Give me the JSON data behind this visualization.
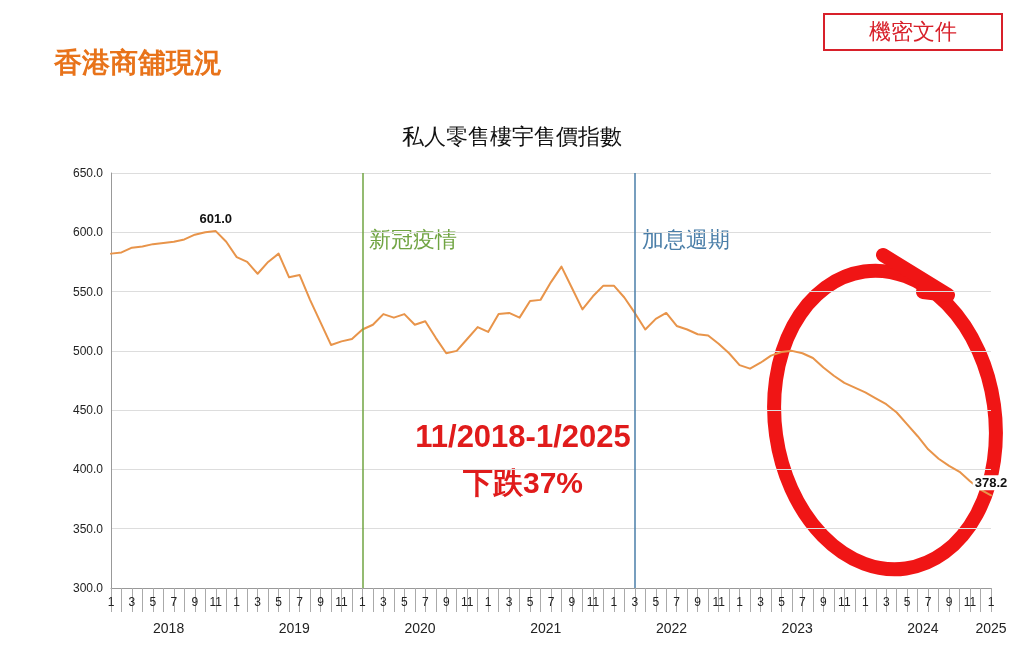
{
  "chart_data": {
    "type": "line",
    "title": "香港商舖現況",
    "subtitle": "私人零售樓宇售價指數",
    "x": [
      "2018-01",
      "2018-02",
      "2018-03",
      "2018-04",
      "2018-05",
      "2018-06",
      "2018-07",
      "2018-08",
      "2018-09",
      "2018-10",
      "2018-11",
      "2018-12",
      "2019-01",
      "2019-02",
      "2019-03",
      "2019-04",
      "2019-05",
      "2019-06",
      "2019-07",
      "2019-08",
      "2019-09",
      "2019-10",
      "2019-11",
      "2019-12",
      "2020-01",
      "2020-02",
      "2020-03",
      "2020-04",
      "2020-05",
      "2020-06",
      "2020-07",
      "2020-08",
      "2020-09",
      "2020-10",
      "2020-11",
      "2020-12",
      "2021-01",
      "2021-02",
      "2021-03",
      "2021-04",
      "2021-05",
      "2021-06",
      "2021-07",
      "2021-08",
      "2021-09",
      "2021-10",
      "2021-11",
      "2021-12",
      "2022-01",
      "2022-02",
      "2022-03",
      "2022-04",
      "2022-05",
      "2022-06",
      "2022-07",
      "2022-08",
      "2022-09",
      "2022-10",
      "2022-11",
      "2022-12",
      "2023-01",
      "2023-02",
      "2023-03",
      "2023-04",
      "2023-05",
      "2023-06",
      "2023-07",
      "2023-08",
      "2023-09",
      "2023-10",
      "2023-11",
      "2023-12",
      "2024-01",
      "2024-02",
      "2024-03",
      "2024-04",
      "2024-05",
      "2024-06",
      "2024-07",
      "2024-08",
      "2024-09",
      "2024-10",
      "2024-11",
      "2024-12",
      "2025-01"
    ],
    "values": [
      582,
      583,
      587,
      588,
      590,
      591,
      592,
      594,
      598,
      600,
      601.0,
      592,
      579,
      575,
      565,
      575,
      582,
      562,
      564,
      543,
      524,
      505,
      508,
      510,
      518,
      522,
      531,
      528,
      531,
      522,
      525,
      511,
      498,
      500,
      510,
      520,
      516,
      531,
      532,
      528,
      542,
      543,
      558,
      571,
      553,
      535,
      546,
      555,
      555,
      545,
      532,
      518,
      527,
      532,
      521,
      518,
      514,
      513,
      506,
      498,
      488,
      485,
      490,
      496,
      499,
      500,
      498,
      494,
      486,
      479,
      473,
      469,
      465,
      460,
      455,
      448,
      438,
      428,
      417,
      409,
      403,
      398,
      390,
      383,
      378.2
    ],
    "xlim": [
      "2018-01",
      "2025-01"
    ],
    "value_labels": [
      null,
      null,
      null,
      null,
      null,
      null,
      null,
      null,
      null,
      null,
      "601.0",
      null,
      null,
      null,
      null,
      null,
      null,
      null,
      null,
      null,
      null,
      null,
      null,
      null,
      null,
      null,
      null,
      null,
      null,
      null,
      null,
      null,
      null,
      null,
      null,
      null,
      null,
      null,
      null,
      null,
      null,
      null,
      null,
      null,
      null,
      null,
      null,
      null,
      null,
      null,
      null,
      null,
      null,
      null,
      null,
      null,
      null,
      null,
      null,
      null,
      null,
      null,
      null,
      null,
      null,
      null,
      null,
      null,
      null,
      null,
      null,
      null,
      null,
      null,
      null,
      null,
      null,
      null,
      null,
      null,
      null,
      null,
      null,
      null,
      "378.2"
    ],
    "color": "#e8944a",
    "ylim": [
      300,
      650
    ],
    "yticks": [
      {
        "value": 300,
        "label": "300.0"
      },
      {
        "value": 350,
        "label": "350.0"
      },
      {
        "value": 400,
        "label": "400.0"
      },
      {
        "value": 450,
        "label": "450.0"
      },
      {
        "value": 500,
        "label": "500.0"
      },
      {
        "value": 550,
        "label": "550.0"
      },
      {
        "value": 600,
        "label": "600.0"
      },
      {
        "value": 650,
        "label": "650.0"
      }
    ],
    "xticks": [
      {
        "value": "2018-01",
        "label": "1"
      },
      {
        "value": "2018-03",
        "label": "3"
      },
      {
        "value": "2018-05",
        "label": "5"
      },
      {
        "value": "2018-07",
        "label": "7"
      },
      {
        "value": "2018-09",
        "label": "9"
      },
      {
        "value": "2018-11",
        "label": "11"
      },
      {
        "value": "2019-01",
        "label": "1"
      },
      {
        "value": "2019-03",
        "label": "3"
      },
      {
        "value": "2019-05",
        "label": "5"
      },
      {
        "value": "2019-07",
        "label": "7"
      },
      {
        "value": "2019-09",
        "label": "9"
      },
      {
        "value": "2019-11",
        "label": "11"
      },
      {
        "value": "2020-01",
        "label": "1"
      },
      {
        "value": "2020-03",
        "label": "3"
      },
      {
        "value": "2020-05",
        "label": "5"
      },
      {
        "value": "2020-07",
        "label": "7"
      },
      {
        "value": "2020-09",
        "label": "9"
      },
      {
        "value": "2020-11",
        "label": "11"
      },
      {
        "value": "2021-01",
        "label": "1"
      },
      {
        "value": "2021-03",
        "label": "3"
      },
      {
        "value": "2021-05",
        "label": "5"
      },
      {
        "value": "2021-07",
        "label": "7"
      },
      {
        "value": "2021-09",
        "label": "9"
      },
      {
        "value": "2021-11",
        "label": "11"
      },
      {
        "value": "2022-01",
        "label": "1"
      },
      {
        "value": "2022-03",
        "label": "3"
      },
      {
        "value": "2022-05",
        "label": "5"
      },
      {
        "value": "2022-07",
        "label": "7"
      },
      {
        "value": "2022-09",
        "label": "9"
      },
      {
        "value": "2022-11",
        "label": "11"
      },
      {
        "value": "2023-01",
        "label": "1"
      },
      {
        "value": "2023-03",
        "label": "3"
      },
      {
        "value": "2023-05",
        "label": "5"
      },
      {
        "value": "2023-07",
        "label": "7"
      },
      {
        "value": "2023-09",
        "label": "9"
      },
      {
        "value": "2023-11",
        "label": "11"
      },
      {
        "value": "2024-01",
        "label": "1"
      },
      {
        "value": "2024-03",
        "label": "3"
      },
      {
        "value": "2024-05",
        "label": "5"
      },
      {
        "value": "2024-07",
        "label": "7"
      },
      {
        "value": "2024-09",
        "label": "9"
      },
      {
        "value": "2024-11",
        "label": "11"
      },
      {
        "value": "2025-01",
        "label": "1"
      }
    ],
    "grid": "y",
    "ref_lines": [
      {
        "axis": "x",
        "value": "2020-01",
        "label": "新冠疫情",
        "color": "#70a442"
      },
      {
        "axis": "x",
        "value": "2022-03",
        "label": "加息週期",
        "color": "#4a7ea8"
      }
    ],
    "annotations": [
      "機密文件",
      "11/2018-1/2025",
      "下跌37%",
      "2018",
      "2019",
      "2020",
      "2021",
      "2022",
      "2023",
      "2024",
      "2025"
    ]
  }
}
